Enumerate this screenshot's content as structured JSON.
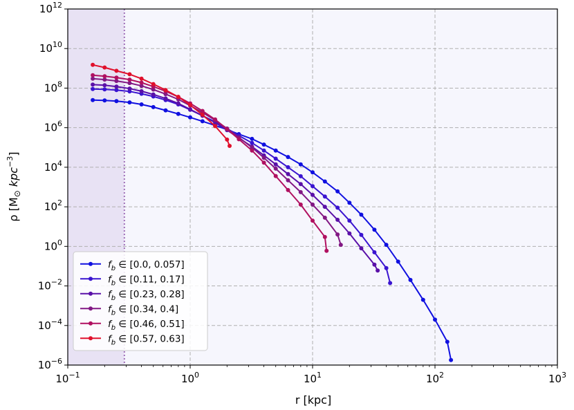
{
  "chart_data": {
    "type": "line",
    "xlabel": "r [kpc]",
    "ylabel_parts": {
      "rho": "ρ [M",
      "sun": "⊙",
      "unit": " kpc",
      "exp": "−3",
      "close": "]"
    },
    "xscale": "log",
    "yscale": "log",
    "xlim": [
      0.1,
      1000
    ],
    "ylim": [
      1e-06,
      1000000000000.0
    ],
    "grid": true,
    "legend_position": "lower-left",
    "shaded_region": {
      "x_from": 0.1,
      "x_to": 0.29,
      "color": "#e8e2f4"
    },
    "vertical_line": {
      "x": 0.29,
      "color": "#a070b8",
      "style": "dotted"
    },
    "background": "#f6f6fd",
    "x_ticks": [
      {
        "value": 0.1,
        "base": "10",
        "exp": "−1"
      },
      {
        "value": 1,
        "base": "10",
        "exp": "0"
      },
      {
        "value": 10,
        "base": "10",
        "exp": "1"
      },
      {
        "value": 100,
        "base": "10",
        "exp": "2"
      },
      {
        "value": 1000,
        "base": "10",
        "exp": "3"
      }
    ],
    "y_ticks": [
      {
        "value": 1e-06,
        "base": "10",
        "exp": "−6"
      },
      {
        "value": 0.0001,
        "base": "10",
        "exp": "−4"
      },
      {
        "value": 0.01,
        "base": "10",
        "exp": "−2"
      },
      {
        "value": 1,
        "base": "10",
        "exp": "0"
      },
      {
        "value": 100.0,
        "base": "10",
        "exp": "2"
      },
      {
        "value": 10000.0,
        "base": "10",
        "exp": "4"
      },
      {
        "value": 1000000.0,
        "base": "10",
        "exp": "6"
      },
      {
        "value": 100000000.0,
        "base": "10",
        "exp": "8"
      },
      {
        "value": 10000000000.0,
        "base": "10",
        "exp": "10"
      },
      {
        "value": 1000000000000.0,
        "base": "10",
        "exp": "12"
      }
    ],
    "series": [
      {
        "name": "f_b ∈ [0.0, 0.057]",
        "color": "#1010e0",
        "points": [
          [
            0.16,
            25000000.0
          ],
          [
            0.2,
            24000000.0
          ],
          [
            0.25,
            22000000.0
          ],
          [
            0.32,
            19000000.0
          ],
          [
            0.4,
            15000000.0
          ],
          [
            0.5,
            11000000.0
          ],
          [
            0.63,
            7500000.0
          ],
          [
            0.8,
            5000000.0
          ],
          [
            1.0,
            3300000.0
          ],
          [
            1.26,
            2100000.0
          ],
          [
            1.6,
            1300000.0
          ],
          [
            2.0,
            800000.0
          ],
          [
            2.5,
            470000.0
          ],
          [
            3.2,
            270000.0
          ],
          [
            4.0,
            140000.0
          ],
          [
            5.0,
            70000.0
          ],
          [
            6.3,
            33000.0
          ],
          [
            8.0,
            14000.0
          ],
          [
            10.0,
            5500.0
          ],
          [
            12.6,
            1900.0
          ],
          [
            16.0,
            600
          ],
          [
            20.0,
            160
          ],
          [
            25.0,
            40
          ],
          [
            32.0,
            7
          ],
          [
            40.0,
            1.2
          ],
          [
            50.0,
            0.17
          ],
          [
            63.0,
            0.02
          ],
          [
            80.0,
            0.002
          ],
          [
            100.0,
            0.0002
          ],
          [
            126.0,
            1.5e-05
          ],
          [
            135.0,
            1.8e-06
          ]
        ]
      },
      {
        "name": "f_b ∈ [0.11, 0.17]",
        "color": "#3a14d0",
        "points": [
          [
            0.16,
            90000000.0
          ],
          [
            0.2,
            87000000.0
          ],
          [
            0.25,
            80000000.0
          ],
          [
            0.32,
            68000000.0
          ],
          [
            0.4,
            52000000.0
          ],
          [
            0.5,
            38000000.0
          ],
          [
            0.63,
            25000000.0
          ],
          [
            0.8,
            15000000.0
          ],
          [
            1.0,
            8000000.0
          ],
          [
            1.26,
            4000000.0
          ],
          [
            1.6,
            2000000.0
          ],
          [
            2.0,
            900000.0
          ],
          [
            2.5,
            400000.0
          ],
          [
            3.2,
            170000.0
          ],
          [
            4.0,
            70000.0
          ],
          [
            5.0,
            27000.0
          ],
          [
            6.3,
            10000.0
          ],
          [
            8.0,
            3500.0
          ],
          [
            10.0,
            1100.0
          ],
          [
            12.6,
            330
          ],
          [
            16.0,
            90
          ],
          [
            20.0,
            20
          ],
          [
            25.0,
            3.8
          ],
          [
            32.0,
            0.5
          ],
          [
            40.0,
            0.08
          ],
          [
            43.0,
            0.014
          ]
        ]
      },
      {
        "name": "f_b ∈ [0.23, 0.28]",
        "color": "#5a10a8",
        "points": [
          [
            0.16,
            150000000.0
          ],
          [
            0.2,
            140000000.0
          ],
          [
            0.25,
            120000000.0
          ],
          [
            0.32,
            95000000.0
          ],
          [
            0.4,
            70000000.0
          ],
          [
            0.5,
            48000000.0
          ],
          [
            0.63,
            30000000.0
          ],
          [
            0.8,
            17000000.0
          ],
          [
            1.0,
            8500000.0
          ],
          [
            1.26,
            4000000.0
          ],
          [
            1.6,
            1800000.0
          ],
          [
            2.0,
            750000.0
          ],
          [
            2.5,
            300000.0
          ],
          [
            3.2,
            110000.0
          ],
          [
            4.0,
            40000.0
          ],
          [
            5.0,
            14000.0
          ],
          [
            6.3,
            4500.0
          ],
          [
            8.0,
            1400.0
          ],
          [
            10.0,
            400
          ],
          [
            12.6,
            100
          ],
          [
            16.0,
            22
          ],
          [
            20.0,
            4.5
          ],
          [
            25.0,
            0.8
          ],
          [
            32.0,
            0.12
          ],
          [
            34.0,
            0.06
          ]
        ]
      },
      {
        "name": "f_b ∈ [0.34, 0.4]",
        "color": "#821884",
        "points": [
          [
            0.16,
            300000000.0
          ],
          [
            0.2,
            270000000.0
          ],
          [
            0.25,
            230000000.0
          ],
          [
            0.32,
            180000000.0
          ],
          [
            0.4,
            130000000.0
          ],
          [
            0.5,
            85000000.0
          ],
          [
            0.63,
            50000000.0
          ],
          [
            0.8,
            27000000.0
          ],
          [
            1.0,
            13000000.0
          ],
          [
            1.26,
            5800000.0
          ],
          [
            1.6,
            2400000.0
          ],
          [
            2.0,
            900000.0
          ],
          [
            2.5,
            320000.0
          ],
          [
            3.2,
            100000.0
          ],
          [
            4.0,
            30000.0
          ],
          [
            5.0,
            8500.0
          ],
          [
            6.3,
            2200.0
          ],
          [
            8.0,
            550
          ],
          [
            10.0,
            130
          ],
          [
            12.6,
            28
          ],
          [
            16.0,
            4
          ],
          [
            17.0,
            1.2
          ]
        ]
      },
      {
        "name": "f_b ∈ [0.46, 0.51]",
        "color": "#b01060",
        "points": [
          [
            0.16,
            450000000.0
          ],
          [
            0.2,
            400000000.0
          ],
          [
            0.25,
            340000000.0
          ],
          [
            0.32,
            270000000.0
          ],
          [
            0.4,
            190000000.0
          ],
          [
            0.5,
            120000000.0
          ],
          [
            0.63,
            70000000.0
          ],
          [
            0.8,
            36000000.0
          ],
          [
            1.0,
            17000000.0
          ],
          [
            1.26,
            7000000.0
          ],
          [
            1.6,
            2600000.0
          ],
          [
            2.0,
            850000.0
          ],
          [
            2.5,
            260000.0
          ],
          [
            3.2,
            70000.0
          ],
          [
            4.0,
            17000.0
          ],
          [
            5.0,
            3600.0
          ],
          [
            6.3,
            700
          ],
          [
            8.0,
            130
          ],
          [
            10.0,
            20
          ],
          [
            12.6,
            3
          ],
          [
            13.0,
            0.6
          ]
        ]
      },
      {
        "name": "f_b ∈ [0.57, 0.63]",
        "color": "#e0102c",
        "points": [
          [
            0.16,
            1500000000.0
          ],
          [
            0.2,
            1100000000.0
          ],
          [
            0.25,
            750000000.0
          ],
          [
            0.32,
            500000000.0
          ],
          [
            0.4,
            300000000.0
          ],
          [
            0.5,
            160000000.0
          ],
          [
            0.63,
            80000000.0
          ],
          [
            0.8,
            36000000.0
          ],
          [
            1.0,
            14000000.0
          ],
          [
            1.26,
            4500000.0
          ],
          [
            1.6,
            1200000.0
          ],
          [
            2.0,
            250000.0
          ],
          [
            2.1,
            120000.0
          ]
        ]
      }
    ]
  }
}
